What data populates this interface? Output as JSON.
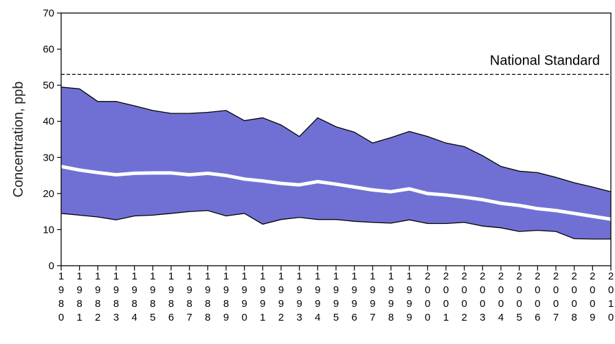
{
  "chart_data": {
    "type": "area",
    "ylabel": "Concentration, ppb",
    "ylim": [
      0,
      70
    ],
    "yticks": [
      0,
      10,
      20,
      30,
      40,
      50,
      60,
      70
    ],
    "x": [
      "1980",
      "1981",
      "1982",
      "1983",
      "1984",
      "1985",
      "1986",
      "1987",
      "1988",
      "1989",
      "1990",
      "1991",
      "1992",
      "1993",
      "1994",
      "1995",
      "1996",
      "1997",
      "1998",
      "1999",
      "2000",
      "2001",
      "2002",
      "2003",
      "2004",
      "2005",
      "2006",
      "2007",
      "2008",
      "2009",
      "2010"
    ],
    "series": [
      {
        "role": "band-upper",
        "values": [
          49.5,
          49,
          45.5,
          45.5,
          44.3,
          43,
          42.2,
          42.2,
          42.5,
          43,
          40.2,
          41,
          39,
          35.8,
          41,
          38.5,
          37,
          34,
          35.5,
          37.2,
          35.8,
          34,
          33,
          30.5,
          27.5,
          26.2,
          25.8,
          24.5,
          23,
          21.8,
          20.5
        ]
      },
      {
        "role": "band-lower",
        "values": [
          14.5,
          14,
          13.5,
          12.7,
          13.8,
          14,
          14.5,
          15,
          15.3,
          13.8,
          14.5,
          11.5,
          12.8,
          13.4,
          12.8,
          12.8,
          12.3,
          12,
          11.8,
          12.7,
          11.7,
          11.7,
          12,
          11,
          10.5,
          9.5,
          9.8,
          9.5,
          7.5,
          7.4,
          7.4
        ]
      },
      {
        "role": "mean",
        "values": [
          27.5,
          26.5,
          25.8,
          25.2,
          25.6,
          25.7,
          25.7,
          25.2,
          25.6,
          25,
          24,
          23.5,
          22.8,
          22.4,
          23.3,
          22.6,
          21.8,
          21,
          20.5,
          21.3,
          20,
          19.6,
          19,
          18.3,
          17.3,
          16.7,
          15.8,
          15.3,
          14.5,
          13.7,
          12.9
        ]
      }
    ],
    "reference_lines": [
      {
        "name": "National Standard",
        "value": 53,
        "style": "dashed"
      }
    ],
    "colors": {
      "band": "#7070d4",
      "mean": "#ffffff",
      "reference": "#000000"
    },
    "grid": false
  }
}
